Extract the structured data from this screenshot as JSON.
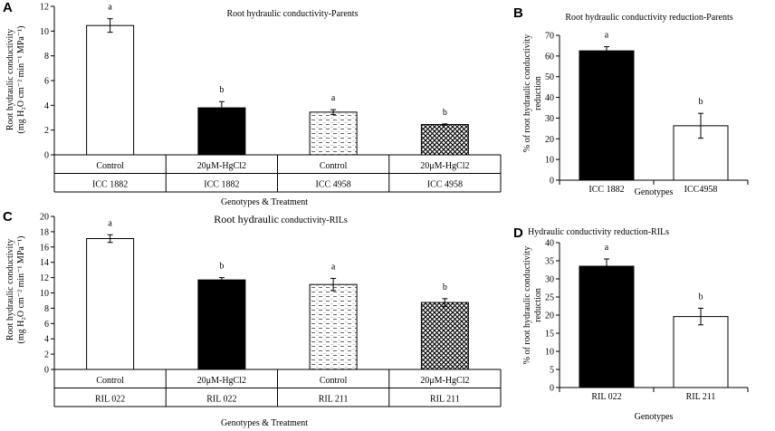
{
  "colors": {
    "axis": "#000000",
    "black_bar": "#000000",
    "white_bar": "#ffffff"
  },
  "chart_data": [
    {
      "panel": "A",
      "type": "bar",
      "title": "Root hydraulic conductivity-Parents",
      "ylabel_lines": [
        "Root hydraulic  conductivity",
        "(mg H₂O cm⁻² min⁻¹ MPa⁻¹)"
      ],
      "xlabel": "Genotypes & Treatment",
      "ylim": [
        0,
        12
      ],
      "yticks": [
        "0",
        "2",
        "4",
        "6",
        "8",
        "10",
        "12"
      ],
      "categories": [
        {
          "treatment": "Control",
          "genotype": "ICC 1882"
        },
        {
          "treatment": "20μM-HgCl2",
          "genotype": "ICC 1882"
        },
        {
          "treatment": "Control",
          "genotype": "ICC 4958"
        },
        {
          "treatment": "20μM-HgCl2",
          "genotype": "ICC 4958"
        }
      ],
      "values": [
        10.45,
        3.8,
        3.45,
        2.45
      ],
      "errors": [
        0.55,
        0.5,
        0.2,
        0.05
      ],
      "letters": [
        "a",
        "b",
        "a",
        "b"
      ],
      "fills": [
        "white",
        "black",
        "dash",
        "cross"
      ],
      "table_axis": true
    },
    {
      "panel": "B",
      "type": "bar",
      "title": "Root hydraulic  conductivity  reduction-Parents",
      "ylabel_lines": [
        "% of root hydraulic  conductivity",
        "reduction"
      ],
      "xlabel": "Genotypes",
      "ylim": [
        0,
        70
      ],
      "yticks": [
        "0",
        "10",
        "20",
        "30",
        "40",
        "50",
        "60",
        "70"
      ],
      "categories": [
        {
          "treatment": "",
          "genotype": "ICC 1882"
        },
        {
          "treatment": "",
          "genotype": "ICC4958"
        }
      ],
      "values": [
        62.5,
        26.3
      ],
      "errors": [
        2.0,
        6.0
      ],
      "letters": [
        "a",
        "b"
      ],
      "fills": [
        "black",
        "white"
      ],
      "table_axis": false
    },
    {
      "panel": "C",
      "type": "bar",
      "title_main": "Root hydraulic",
      "title_rest": " conductivity-RILs",
      "ylabel_lines": [
        "Root hydraulic  conductivity",
        "(mg H₂O cm⁻² min⁻¹ MPa⁻¹)"
      ],
      "xlabel": "Genotypes  & Treatment",
      "ylim": [
        0,
        20
      ],
      "yticks": [
        "0",
        "2",
        "4",
        "6",
        "8",
        "10",
        "12",
        "14",
        "16",
        "18",
        "20"
      ],
      "categories": [
        {
          "treatment": "Control",
          "genotype": "RIL 022"
        },
        {
          "treatment": "20μM-HgCl2",
          "genotype": "RIL 022"
        },
        {
          "treatment": "Control",
          "genotype": "RIL 211"
        },
        {
          "treatment": "20μM-HgCl2",
          "genotype": "RIL 211"
        }
      ],
      "values": [
        17.1,
        11.7,
        11.1,
        8.75
      ],
      "errors": [
        0.5,
        0.3,
        0.8,
        0.5
      ],
      "letters": [
        "a",
        "b",
        "a",
        "b"
      ],
      "fills": [
        "white",
        "black",
        "dash",
        "cross"
      ],
      "table_axis": true
    },
    {
      "panel": "D",
      "type": "bar",
      "title": "Hydraulic conductivity reduction-RILs",
      "ylabel_lines": [
        "% of root hydraulic conductivity",
        "reduction"
      ],
      "xlabel": "Genotypes",
      "ylim": [
        0,
        40
      ],
      "yticks": [
        "0",
        "5",
        "10",
        "15",
        "20",
        "25",
        "30",
        "35",
        "40"
      ],
      "categories": [
        {
          "treatment": "",
          "genotype": "RIL 022"
        },
        {
          "treatment": "",
          "genotype": "RIL 211"
        }
      ],
      "values": [
        33.5,
        19.6
      ],
      "errors": [
        2.0,
        2.3
      ],
      "letters": [
        "a",
        "b"
      ],
      "fills": [
        "black",
        "white"
      ],
      "table_axis": false
    }
  ]
}
